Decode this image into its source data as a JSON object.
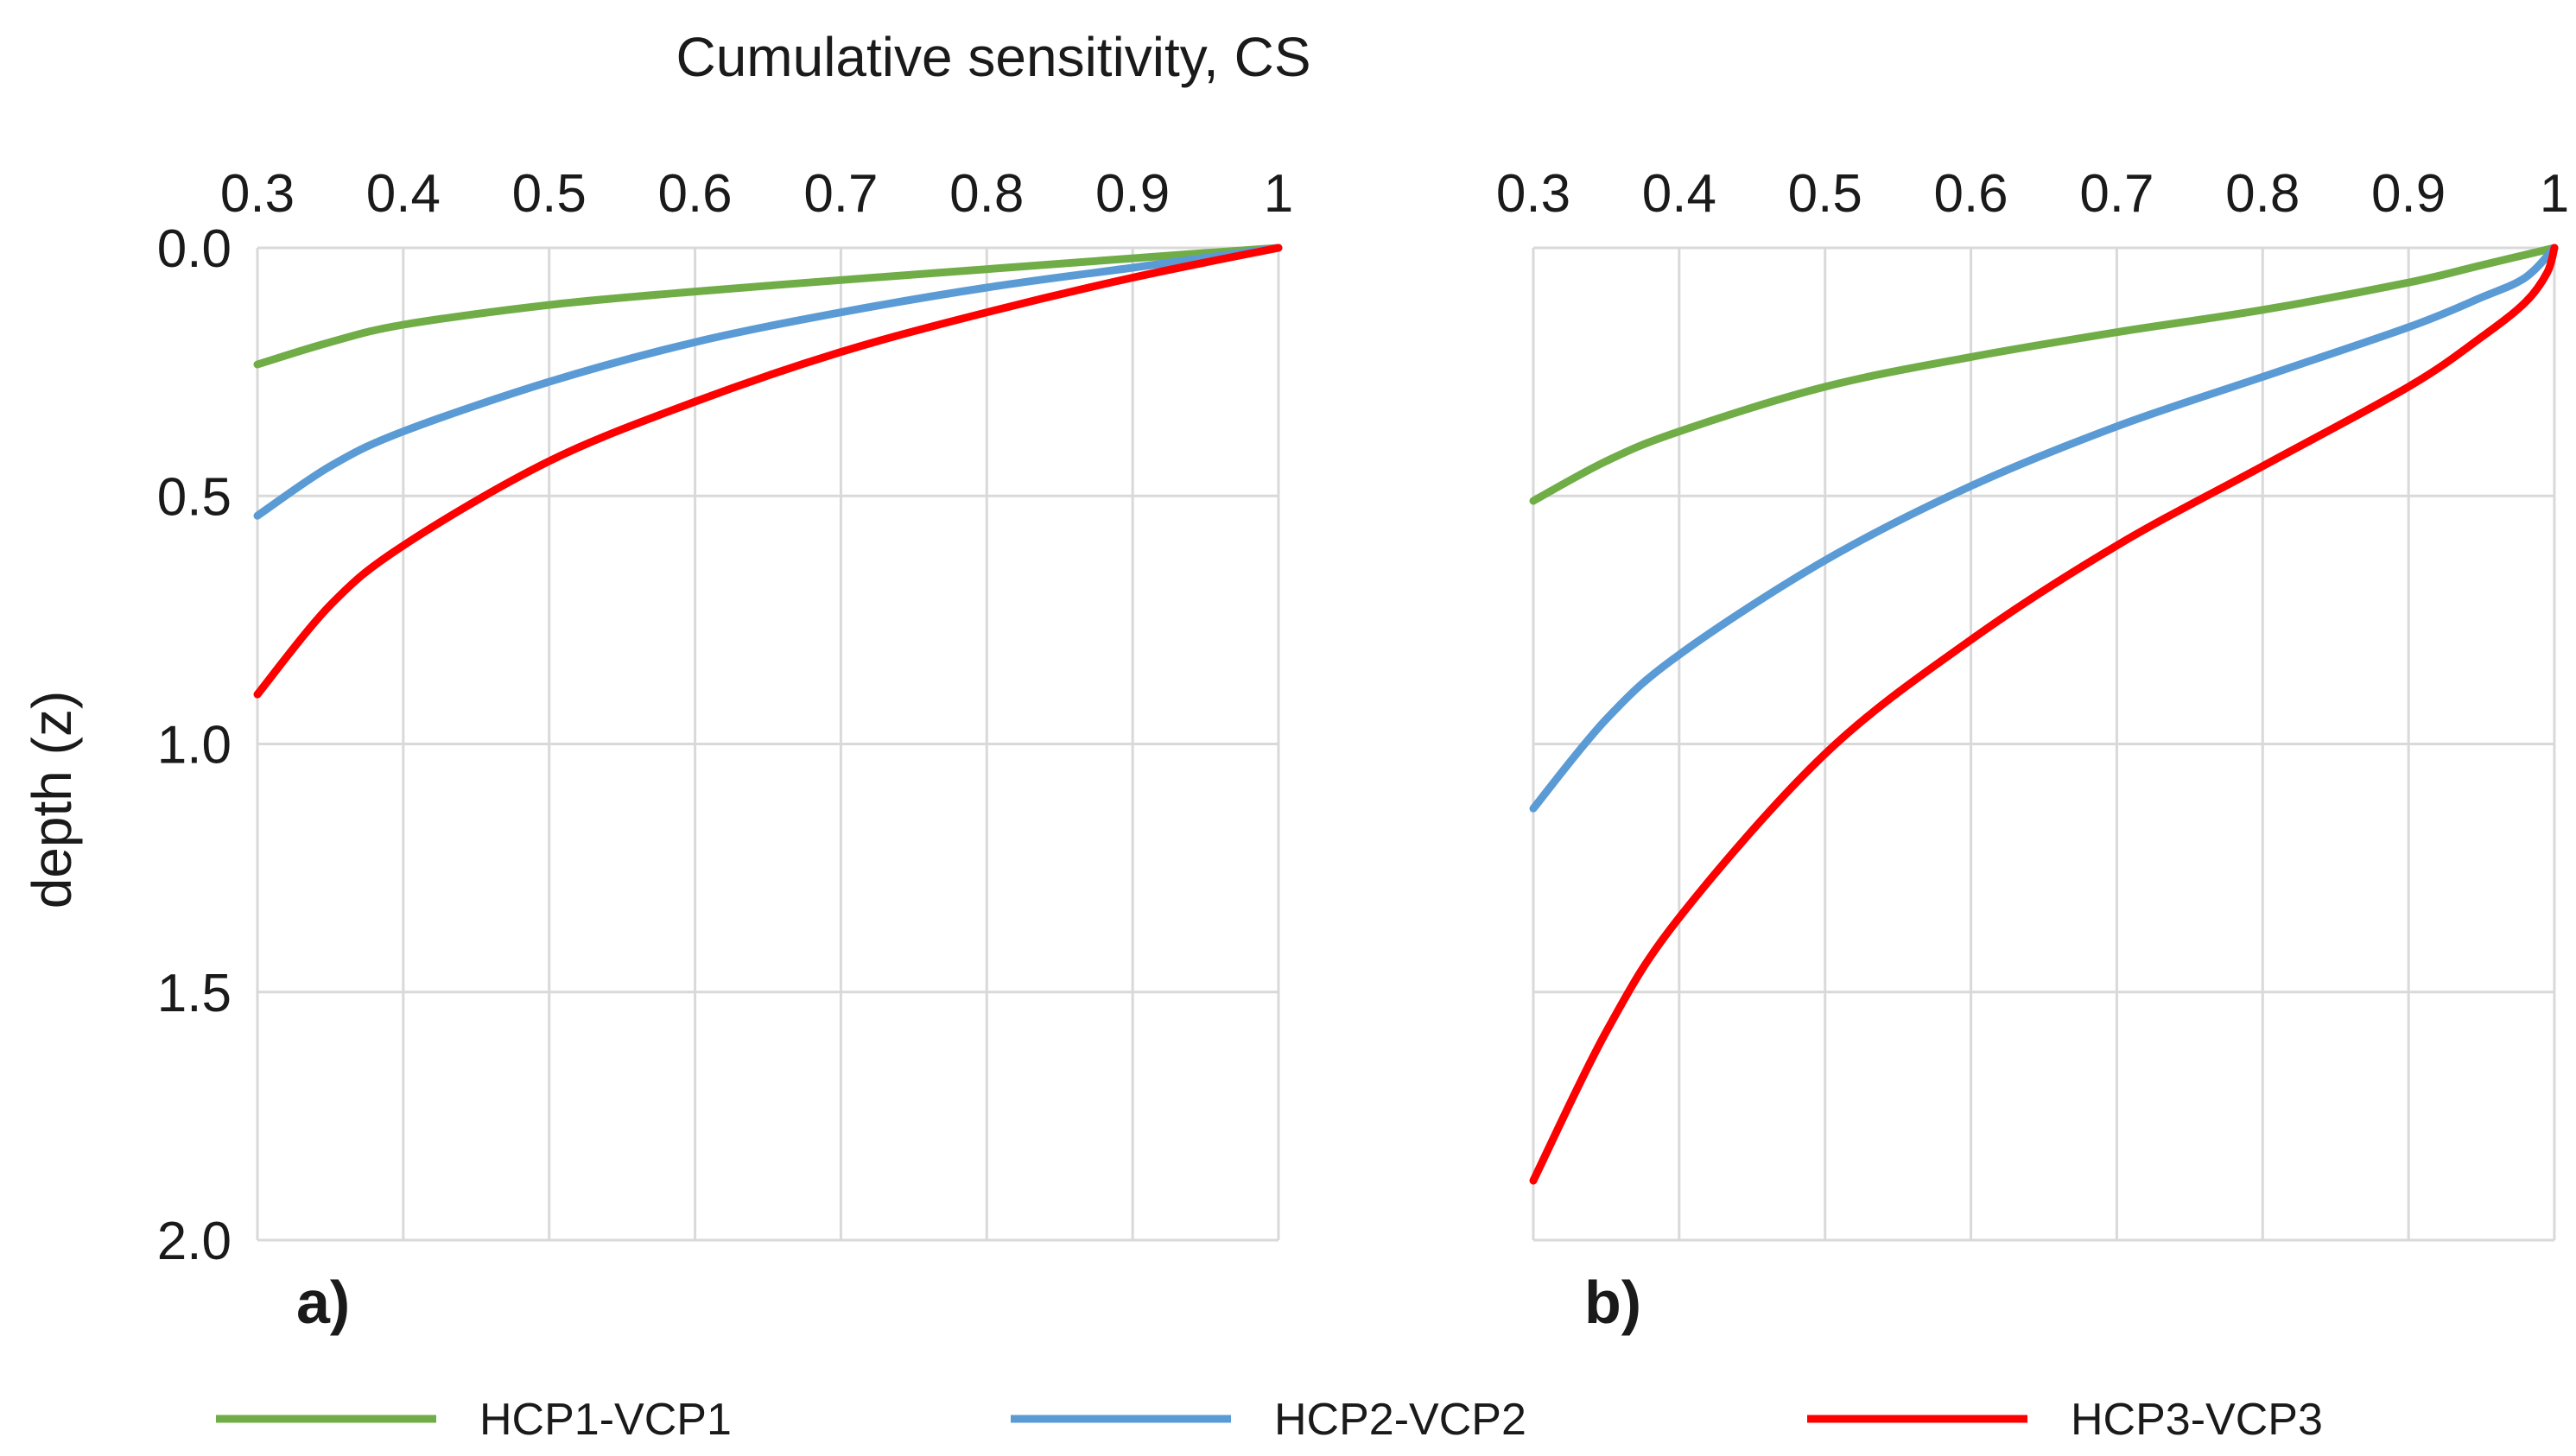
{
  "colors": {
    "green": "#70ad47",
    "blue": "#5b9bd5",
    "red": "#ff0000",
    "grid": "#d9d9d9"
  },
  "chart_data": {
    "type": "line",
    "title": "Cumulative sensitivity, CS",
    "xlabel": "Cumulative sensitivity, CS",
    "ylabel": "depth (z)",
    "xlim": [
      0.3,
      1.0
    ],
    "ylim": [
      0,
      2.0
    ],
    "x_ticks": [
      "0.3",
      "0.4",
      "0.5",
      "0.6",
      "0.7",
      "0.8",
      "0.9",
      "1"
    ],
    "y_ticks": [
      "0.0",
      "0.5",
      "1.0",
      "1.5",
      "2.0"
    ],
    "legend": [
      "HCP1-VCP1",
      "HCP2-VCP2",
      "HCP3-VCP3"
    ],
    "panels": [
      {
        "label": "a)",
        "series": [
          {
            "name": "HCP1-VCP1",
            "color": "#70ad47",
            "points": [
              [
                0.3,
                0.235
              ],
              [
                0.35,
                0.19
              ],
              [
                0.4,
                0.155
              ],
              [
                0.5,
                0.115
              ],
              [
                0.6,
                0.088
              ],
              [
                0.7,
                0.065
              ],
              [
                0.8,
                0.043
              ],
              [
                0.9,
                0.021
              ],
              [
                1.0,
                0.0
              ]
            ]
          },
          {
            "name": "HCP2-VCP2",
            "color": "#5b9bd5",
            "points": [
              [
                0.3,
                0.54
              ],
              [
                0.35,
                0.44
              ],
              [
                0.4,
                0.37
              ],
              [
                0.5,
                0.27
              ],
              [
                0.6,
                0.19
              ],
              [
                0.7,
                0.13
              ],
              [
                0.8,
                0.08
              ],
              [
                0.9,
                0.04
              ],
              [
                1.0,
                0.0
              ]
            ]
          },
          {
            "name": "HCP3-VCP3",
            "color": "#ff0000",
            "points": [
              [
                0.3,
                0.9
              ],
              [
                0.35,
                0.72
              ],
              [
                0.4,
                0.6
              ],
              [
                0.5,
                0.43
              ],
              [
                0.6,
                0.31
              ],
              [
                0.7,
                0.21
              ],
              [
                0.8,
                0.13
              ],
              [
                0.9,
                0.06
              ],
              [
                1.0,
                0.0
              ]
            ]
          }
        ]
      },
      {
        "label": "b)",
        "series": [
          {
            "name": "HCP1-VCP1",
            "color": "#70ad47",
            "points": [
              [
                0.3,
                0.51
              ],
              [
                0.35,
                0.43
              ],
              [
                0.4,
                0.37
              ],
              [
                0.5,
                0.28
              ],
              [
                0.6,
                0.22
              ],
              [
                0.7,
                0.17
              ],
              [
                0.8,
                0.125
              ],
              [
                0.9,
                0.07
              ],
              [
                0.95,
                0.035
              ],
              [
                1.0,
                0.0
              ]
            ]
          },
          {
            "name": "HCP2-VCP2",
            "color": "#5b9bd5",
            "points": [
              [
                0.3,
                1.13
              ],
              [
                0.35,
                0.95
              ],
              [
                0.4,
                0.82
              ],
              [
                0.5,
                0.63
              ],
              [
                0.6,
                0.48
              ],
              [
                0.7,
                0.36
              ],
              [
                0.8,
                0.26
              ],
              [
                0.9,
                0.16
              ],
              [
                0.95,
                0.1
              ],
              [
                0.98,
                0.06
              ],
              [
                1.0,
                0.0
              ]
            ]
          },
          {
            "name": "HCP3-VCP3",
            "color": "#ff0000",
            "points": [
              [
                0.3,
                1.88
              ],
              [
                0.35,
                1.58
              ],
              [
                0.4,
                1.35
              ],
              [
                0.5,
                1.02
              ],
              [
                0.6,
                0.79
              ],
              [
                0.7,
                0.6
              ],
              [
                0.8,
                0.44
              ],
              [
                0.9,
                0.28
              ],
              [
                0.95,
                0.18
              ],
              [
                0.98,
                0.11
              ],
              [
                0.995,
                0.05
              ],
              [
                1.0,
                0.0
              ]
            ]
          }
        ]
      }
    ]
  }
}
